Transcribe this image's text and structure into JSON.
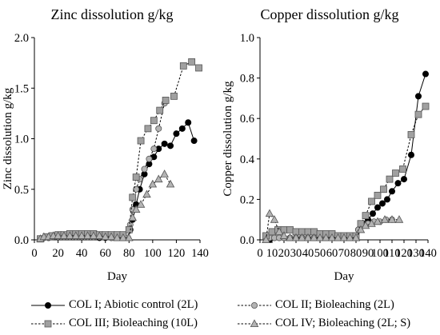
{
  "chart_data": [
    {
      "type": "line",
      "title": "Zinc dissolution g/kg",
      "xlabel": "Day",
      "ylabel": "Zinc dissolution g/kg",
      "xlim": [
        0,
        140
      ],
      "ylim": [
        0,
        2.0
      ],
      "xticks": [
        "0",
        "20",
        "40",
        "60",
        "80",
        "100",
        "120",
        "140"
      ],
      "yticks": [
        "0.0",
        "0.5",
        "1.0",
        "1.5",
        "2.0"
      ],
      "xtick_values": [
        0,
        20,
        40,
        60,
        80,
        100,
        120,
        140
      ],
      "ytick_values": [
        0,
        0.5,
        1.0,
        1.5,
        2.0
      ],
      "grid": false,
      "series": [
        {
          "name": "COL I; Abiotic control (2L)",
          "marker": "circle",
          "fill": "#000000",
          "line": "solid",
          "x": [
            5,
            8,
            12,
            16,
            20,
            25,
            30,
            35,
            40,
            45,
            50,
            55,
            60,
            65,
            70,
            75,
            79,
            81,
            83,
            86,
            89,
            93,
            97,
            101,
            105,
            110,
            115,
            120,
            125,
            130,
            135
          ],
          "y": [
            0.01,
            0.02,
            0.02,
            0.03,
            0.03,
            0.03,
            0.03,
            0.03,
            0.03,
            0.03,
            0.03,
            0.02,
            0.02,
            0.02,
            0.02,
            0.02,
            0.02,
            0.1,
            0.2,
            0.35,
            0.5,
            0.65,
            0.75,
            0.82,
            0.9,
            0.95,
            0.93,
            1.05,
            1.1,
            1.16,
            0.98
          ]
        },
        {
          "name": "COL II; Bioleaching (2L)",
          "marker": "circle",
          "fill": "#b4b4b4",
          "line": "dashed",
          "x": [
            5,
            8,
            12,
            16,
            20,
            25,
            30,
            35,
            40,
            45,
            50,
            55,
            60,
            65,
            70,
            75,
            79,
            81,
            83,
            86,
            89,
            93,
            97,
            101,
            105,
            110
          ],
          "y": [
            0.01,
            0.02,
            0.02,
            0.03,
            0.03,
            0.03,
            0.03,
            0.03,
            0.03,
            0.03,
            0.03,
            0.03,
            0.03,
            0.02,
            0.02,
            0.02,
            0.02,
            0.15,
            0.3,
            0.5,
            0.6,
            0.7,
            0.8,
            0.9,
            1.1,
            1.35
          ]
        },
        {
          "name": "COL III; Bioleaching (10L)",
          "marker": "square",
          "fill": "#a0a0a0",
          "line": "dashed",
          "x": [
            5,
            10,
            15,
            20,
            25,
            30,
            35,
            40,
            45,
            50,
            55,
            60,
            65,
            70,
            75,
            80,
            83,
            86,
            90,
            96,
            101,
            106,
            111,
            118,
            126,
            133,
            139
          ],
          "y": [
            0.01,
            0.03,
            0.04,
            0.05,
            0.05,
            0.06,
            0.06,
            0.06,
            0.06,
            0.06,
            0.05,
            0.05,
            0.05,
            0.05,
            0.05,
            0.1,
            0.42,
            0.62,
            0.98,
            1.1,
            1.18,
            1.28,
            1.38,
            1.42,
            1.72,
            1.76,
            1.7
          ]
        },
        {
          "name": "COL IV; Bioleaching (2L; S)",
          "marker": "triangle",
          "fill": "#b4b4b4",
          "line": "dashed",
          "x": [
            5,
            8,
            12,
            16,
            20,
            25,
            30,
            35,
            40,
            45,
            50,
            55,
            60,
            65,
            70,
            75,
            80,
            83,
            86,
            90,
            95,
            100,
            105,
            110,
            115
          ],
          "y": [
            0.01,
            0.03,
            0.03,
            0.04,
            0.04,
            0.04,
            0.04,
            0.04,
            0.04,
            0.04,
            0.04,
            0.04,
            0.03,
            0.03,
            0.02,
            0.02,
            0.02,
            0.22,
            0.3,
            0.35,
            0.45,
            0.55,
            0.6,
            0.65,
            0.55
          ]
        }
      ]
    },
    {
      "type": "line",
      "title": "Copper dissolution g/kg",
      "xlabel": "Day",
      "ylabel": "Copper dissolution g/kg",
      "xlim": [
        0,
        140
      ],
      "ylim": [
        0,
        1.0
      ],
      "xticks": [
        "0",
        "10",
        "20",
        "30",
        "40",
        "50",
        "60",
        "70",
        "80",
        "90",
        "100",
        "110",
        "120",
        "130",
        "140"
      ],
      "yticks": [
        "0.0",
        "0.2",
        "0.4",
        "0.6",
        "0.8",
        "1.0"
      ],
      "xtick_values": [
        0,
        10,
        20,
        30,
        40,
        50,
        60,
        70,
        80,
        90,
        100,
        110,
        120,
        130,
        140
      ],
      "ytick_values": [
        0,
        0.2,
        0.4,
        0.6,
        0.8,
        1.0
      ],
      "grid": false,
      "series": [
        {
          "name": "COL I; Abiotic control (2L)",
          "marker": "circle",
          "fill": "#000000",
          "line": "solid",
          "x": [
            5,
            8,
            12,
            16,
            20,
            25,
            30,
            35,
            40,
            45,
            50,
            55,
            60,
            65,
            70,
            75,
            79,
            82,
            86,
            90,
            94,
            98,
            102,
            106,
            110,
            115,
            120,
            126,
            132,
            138
          ],
          "y": [
            0.0,
            0.0,
            0.01,
            0.01,
            0.01,
            0.01,
            0.01,
            0.01,
            0.01,
            0.01,
            0.01,
            0.01,
            0.01,
            0.01,
            0.01,
            0.01,
            0.01,
            0.05,
            0.08,
            0.1,
            0.13,
            0.16,
            0.18,
            0.2,
            0.24,
            0.28,
            0.3,
            0.42,
            0.71,
            0.82
          ]
        },
        {
          "name": "COL II; Bioleaching (2L)",
          "marker": "circle",
          "fill": "#b4b4b4",
          "line": "dashed",
          "x": [
            5,
            8,
            12,
            16,
            20,
            25,
            30,
            35,
            40,
            45,
            50,
            55,
            60,
            65,
            70,
            75,
            79,
            82,
            86,
            90,
            95,
            100,
            105,
            110
          ],
          "y": [
            0.0,
            0.01,
            0.01,
            0.01,
            0.01,
            0.01,
            0.01,
            0.01,
            0.01,
            0.01,
            0.01,
            0.01,
            0.01,
            0.01,
            0.01,
            0.01,
            0.01,
            0.05,
            0.07,
            0.08,
            0.09,
            0.09,
            0.1,
            0.1
          ]
        },
        {
          "name": "COL III; Bioleaching (10L)",
          "marker": "square",
          "fill": "#a0a0a0",
          "line": "dashed",
          "x": [
            5,
            10,
            15,
            20,
            25,
            30,
            35,
            40,
            45,
            50,
            55,
            60,
            65,
            70,
            75,
            80,
            84,
            88,
            93,
            98,
            103,
            108,
            113,
            119,
            126,
            132,
            138
          ],
          "y": [
            0.02,
            0.04,
            0.05,
            0.05,
            0.05,
            0.04,
            0.04,
            0.04,
            0.04,
            0.03,
            0.03,
            0.03,
            0.02,
            0.02,
            0.02,
            0.02,
            0.08,
            0.12,
            0.19,
            0.22,
            0.25,
            0.3,
            0.33,
            0.35,
            0.52,
            0.62,
            0.66
          ]
        },
        {
          "name": "COL IV; Bioleaching (2L; S)",
          "marker": "triangle",
          "fill": "#b4b4b4",
          "line": "dashed",
          "x": [
            5,
            8,
            12,
            16,
            20,
            25,
            30,
            35,
            40,
            45,
            50,
            55,
            60,
            65,
            70,
            75,
            80,
            84,
            88,
            93,
            98,
            104,
            110,
            116
          ],
          "y": [
            0.0,
            0.13,
            0.1,
            0.04,
            0.02,
            0.01,
            0.01,
            0.01,
            0.01,
            0.01,
            0.01,
            0.01,
            0.01,
            0.01,
            0.01,
            0.01,
            0.01,
            0.05,
            0.07,
            0.08,
            0.09,
            0.1,
            0.1,
            0.1
          ]
        }
      ]
    }
  ],
  "legend": [
    {
      "label": "COL I; Abiotic control (2L)",
      "marker": "circle",
      "fill": "#000000",
      "line": "solid"
    },
    {
      "label": "COL II; Bioleaching (2L)",
      "marker": "circle",
      "fill": "#b4b4b4",
      "line": "dashed"
    },
    {
      "label": "COL III; Bioleaching (10L)",
      "marker": "square",
      "fill": "#a0a0a0",
      "line": "dashed"
    },
    {
      "label": "COL IV; Bioleaching (2L; S)",
      "marker": "triangle",
      "fill": "#b4b4b4",
      "line": "dashed"
    }
  ]
}
